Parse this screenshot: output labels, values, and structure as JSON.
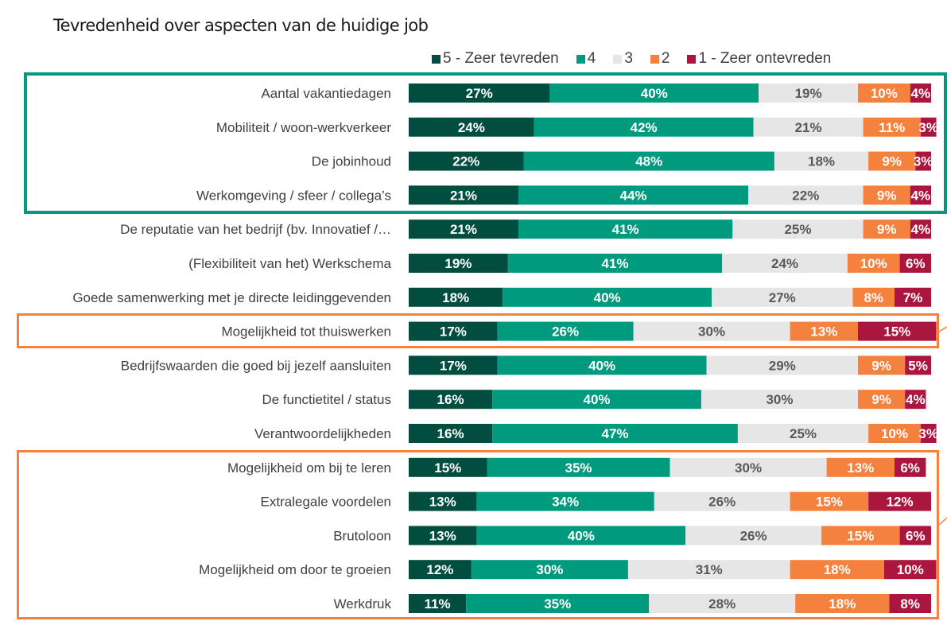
{
  "chart_data": {
    "type": "bar",
    "orientation": "horizontal",
    "stacked": true,
    "percent_stacked": true,
    "title": "Tevredenheid over aspecten van de huidige job",
    "xlabel": "",
    "ylabel": "",
    "xlim": [
      0,
      100
    ],
    "grid": false,
    "legend": {
      "position": "top-right"
    },
    "categories": [
      "Aantal vakantiedagen",
      "Mobiliteit / woon-werkverkeer",
      "De jobinhoud",
      "Werkomgeving / sfeer / collega’s",
      "De reputatie van het bedrijf (bv. Innovatief /…",
      "(Flexibiliteit van het) Werkschema",
      "Goede samenwerking met je directe leidinggevenden",
      "Mogelijkheid tot thuiswerken",
      "Bedrijfswaarden die goed bij jezelf aansluiten",
      "De functietitel / status",
      "Verantwoordelijkheden",
      "Mogelijkheid om bij te leren",
      "Extralegale voordelen",
      "Brutoloon",
      "Mogelijkheid om door te groeien",
      "Werkdruk"
    ],
    "series": [
      {
        "name": "5 - Zeer tevreden",
        "color": "#014d40",
        "label_color": "#ffffff",
        "values": [
          27,
          24,
          22,
          21,
          21,
          19,
          18,
          17,
          17,
          16,
          16,
          15,
          13,
          13,
          12,
          11
        ]
      },
      {
        "name": "4",
        "color": "#009a7e",
        "label_color": "#ffffff",
        "values": [
          40,
          42,
          48,
          44,
          41,
          41,
          40,
          26,
          40,
          40,
          47,
          35,
          34,
          40,
          30,
          35
        ]
      },
      {
        "name": "3",
        "color": "#e6e6e6",
        "label_color": "#595959",
        "values": [
          19,
          21,
          18,
          22,
          25,
          24,
          27,
          30,
          29,
          30,
          25,
          30,
          26,
          26,
          31,
          28
        ]
      },
      {
        "name": "2",
        "color": "#f5813e",
        "label_color": "#ffffff",
        "values": [
          10,
          11,
          9,
          9,
          9,
          10,
          8,
          13,
          9,
          9,
          10,
          13,
          15,
          15,
          18,
          18
        ]
      },
      {
        "name": "1 - Zeer ontevreden",
        "color": "#ab163f",
        "label_color": "#ffffff",
        "values": [
          4,
          3,
          3,
          4,
          4,
          6,
          7,
          15,
          5,
          4,
          3,
          6,
          12,
          6,
          10,
          8
        ]
      }
    ],
    "value_format": "{v}%",
    "highlights": [
      {
        "name": "top-group",
        "color": "#009a7e",
        "rows": [
          0,
          3
        ]
      },
      {
        "name": "thuiswerken",
        "color": "#f5813e",
        "rows": [
          7,
          7
        ]
      },
      {
        "name": "bottom-group",
        "color": "#f5813e",
        "rows": [
          11,
          15
        ]
      }
    ]
  }
}
